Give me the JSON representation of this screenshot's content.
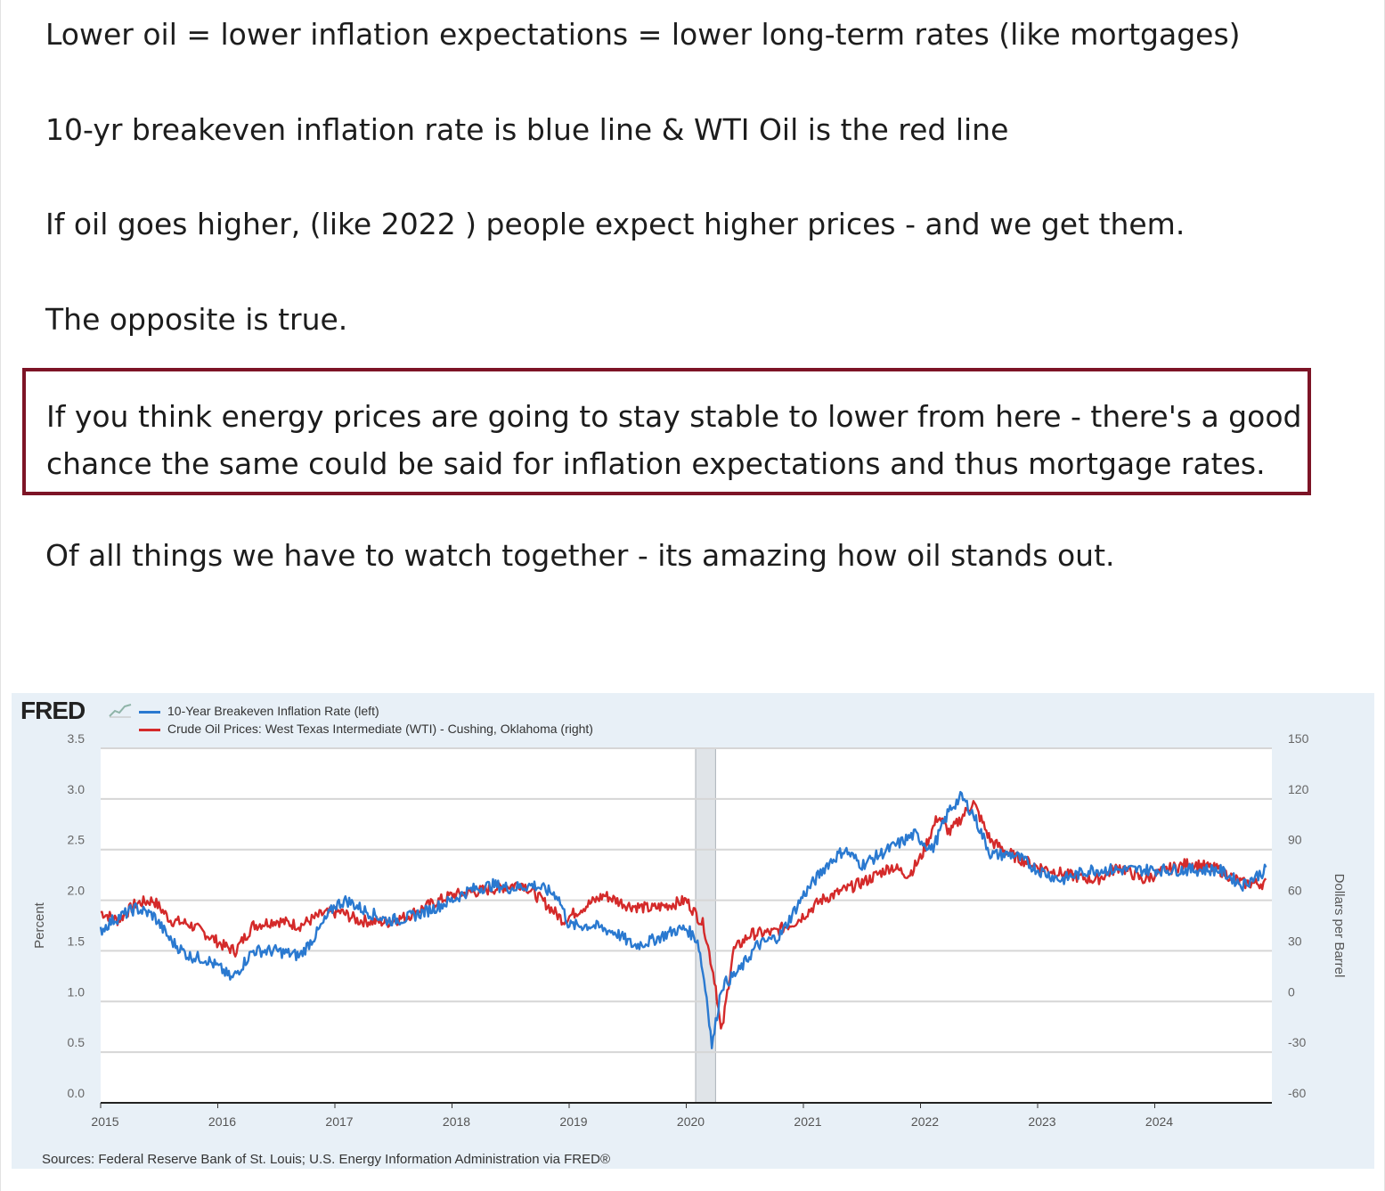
{
  "post": {
    "paragraphs": [
      "Lower oil = lower inflation expectations = lower long-term rates (like mortgages)",
      "10-yr breakeven inflation rate is blue line & WTI Oil is the red line",
      "If oil goes higher, (like 2022 ) people expect higher prices - and we get them.",
      "The opposite is true."
    ],
    "callout_lines": [
      "If you think energy prices are going to stay stable to lower from here - there's a good",
      "chance the same could be said for inflation expectations and thus mortgage rates."
    ],
    "closing": "Of all things we have to watch together - its amazing how oil stands out.",
    "callout_border_color": "#7d1426"
  },
  "chart": {
    "logo": "FRED",
    "logo_icon": "fred-chart-icon",
    "source": "Sources: Federal Reserve Bank of St. Louis; U.S. Energy Information Administration via FRED®",
    "background": "#e8f0f7"
  },
  "chart_data": {
    "type": "line",
    "title": "",
    "xlabel": "",
    "ylabel": "Percent",
    "ylabel_right": "Dollars per Barrel",
    "x_ticks": [
      "2015",
      "2016",
      "2017",
      "2018",
      "2019",
      "2020",
      "2021",
      "2022",
      "2023",
      "2024"
    ],
    "y_ticks_left": [
      "0.0",
      "0.5",
      "1.0",
      "1.5",
      "2.0",
      "2.5",
      "3.0",
      "3.5"
    ],
    "y_ticks_right": [
      "-60",
      "-30",
      "0",
      "30",
      "60",
      "90",
      "120",
      "150"
    ],
    "ylim_left": [
      0,
      3.5
    ],
    "ylim_right": [
      -60,
      150
    ],
    "xlim": [
      2015.0,
      2025.0
    ],
    "grid": true,
    "recession_shading": [
      2020.08,
      2020.25
    ],
    "legend_position": "top-left",
    "series": [
      {
        "name": "10-Year Breakeven Inflation Rate (left)",
        "axis": "left",
        "color": "#2a79d0",
        "x": [
          2015.0,
          2015.1,
          2015.3,
          2015.45,
          2015.6,
          2015.75,
          2015.9,
          2016.05,
          2016.12,
          2016.3,
          2016.5,
          2016.7,
          2016.85,
          2017.0,
          2017.1,
          2017.25,
          2017.45,
          2017.6,
          2017.8,
          2018.0,
          2018.15,
          2018.35,
          2018.5,
          2018.7,
          2018.9,
          2019.0,
          2019.2,
          2019.4,
          2019.55,
          2019.7,
          2019.9,
          2020.0,
          2020.1,
          2020.18,
          2020.22,
          2020.3,
          2020.45,
          2020.6,
          2020.8,
          2021.0,
          2021.2,
          2021.35,
          2021.5,
          2021.65,
          2021.8,
          2021.95,
          2022.1,
          2022.25,
          2022.35,
          2022.45,
          2022.6,
          2022.8,
          2023.0,
          2023.2,
          2023.45,
          2023.7,
          2024.0,
          2024.3,
          2024.55,
          2024.75,
          2024.95
        ],
        "values": [
          1.7,
          1.8,
          1.92,
          1.85,
          1.6,
          1.45,
          1.42,
          1.3,
          1.22,
          1.5,
          1.5,
          1.45,
          1.68,
          1.95,
          2.0,
          1.9,
          1.8,
          1.82,
          1.9,
          2.0,
          2.1,
          2.15,
          2.12,
          2.15,
          2.05,
          1.75,
          1.75,
          1.68,
          1.55,
          1.6,
          1.7,
          1.72,
          1.6,
          1.0,
          0.55,
          1.15,
          1.3,
          1.55,
          1.65,
          2.05,
          2.35,
          2.5,
          2.35,
          2.45,
          2.55,
          2.65,
          2.5,
          2.9,
          3.02,
          2.85,
          2.45,
          2.45,
          2.3,
          2.2,
          2.3,
          2.3,
          2.3,
          2.3,
          2.3,
          2.15,
          2.3
        ]
      },
      {
        "name": "Crude Oil Prices: West Texas Intermediate (WTI) - Cushing, Oklahoma (right)",
        "axis": "right",
        "color": "#d42a2a",
        "x": [
          2015.0,
          2015.15,
          2015.3,
          2015.45,
          2015.6,
          2015.75,
          2015.9,
          2016.05,
          2016.15,
          2016.3,
          2016.5,
          2016.7,
          2016.9,
          2017.05,
          2017.2,
          2017.45,
          2017.6,
          2017.8,
          2018.0,
          2018.2,
          2018.45,
          2018.6,
          2018.8,
          2018.95,
          2019.1,
          2019.3,
          2019.5,
          2019.7,
          2019.9,
          2020.0,
          2020.15,
          2020.25,
          2020.3,
          2020.4,
          2020.55,
          2020.75,
          2020.95,
          2021.15,
          2021.35,
          2021.55,
          2021.75,
          2021.9,
          2022.0,
          2022.15,
          2022.25,
          2022.45,
          2022.6,
          2022.8,
          2023.0,
          2023.25,
          2023.5,
          2023.7,
          2023.9,
          2024.1,
          2024.3,
          2024.55,
          2024.75,
          2024.95
        ],
        "values": [
          53,
          48,
          58,
          60,
          48,
          46,
          40,
          33,
          30,
          45,
          48,
          45,
          52,
          53,
          48,
          47,
          50,
          57,
          63,
          65,
          68,
          70,
          58,
          48,
          55,
          63,
          57,
          55,
          58,
          60,
          45,
          10,
          -20,
          30,
          40,
          41,
          48,
          60,
          66,
          72,
          80,
          75,
          85,
          110,
          100,
          118,
          95,
          86,
          80,
          75,
          72,
          80,
          72,
          78,
          82,
          78,
          70,
          70
        ]
      }
    ]
  }
}
